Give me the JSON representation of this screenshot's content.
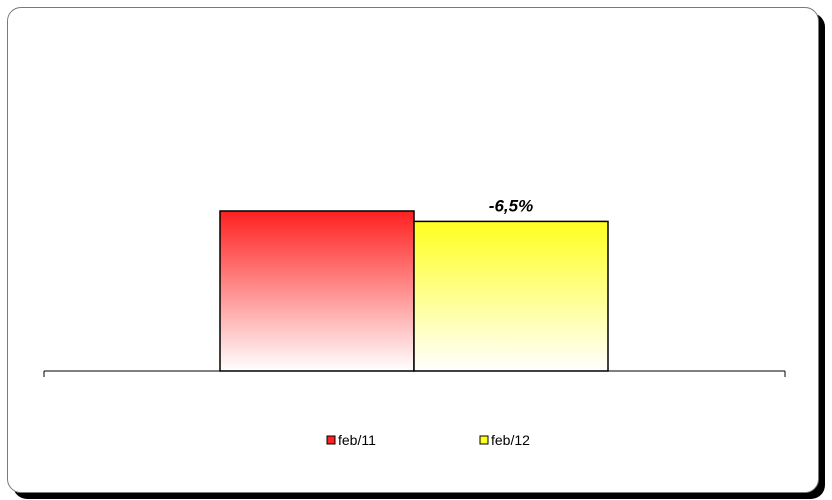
{
  "chart_data": {
    "type": "bar",
    "categories": [
      ""
    ],
    "series": [
      {
        "name": "feb/11",
        "values": [
          100
        ],
        "color": "#ff2020"
      },
      {
        "name": "feb/12",
        "values": [
          93.5
        ],
        "color": "#ffff20"
      }
    ],
    "annotations": [
      {
        "series": "feb/12",
        "text": "-6,5%"
      }
    ],
    "ylim": [
      0,
      200
    ],
    "grid": false,
    "legend": "bottom",
    "title": "",
    "xlabel": "",
    "ylabel": ""
  }
}
